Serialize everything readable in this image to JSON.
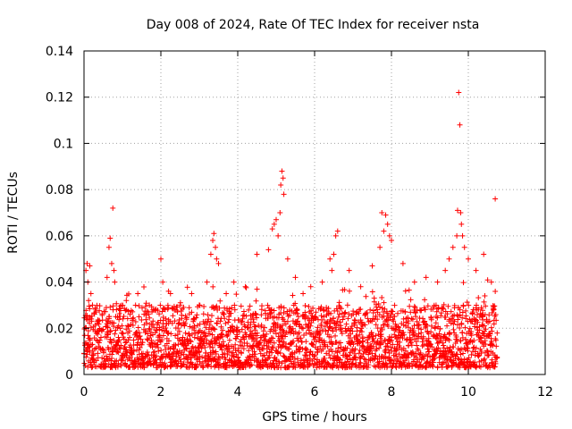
{
  "chart_data": {
    "type": "scatter",
    "title": "Day 008 of 2024, Rate Of TEC Index for receiver nsta",
    "xlabel": "GPS time / hours",
    "ylabel": "ROTI / TECUs",
    "xlim": [
      0,
      12
    ],
    "ylim": [
      0,
      0.14
    ],
    "xticks": [
      0,
      2,
      4,
      6,
      8,
      10,
      12
    ],
    "xtick_labels": [
      "0",
      "2",
      "4",
      "6",
      "8",
      "10",
      "12"
    ],
    "yticks": [
      0,
      0.02,
      0.04,
      0.06,
      0.08,
      0.1,
      0.12,
      0.14
    ],
    "ytick_labels": [
      "0",
      "0.02",
      "0.04",
      "0.06",
      "0.08",
      "0.1",
      "0.12",
      "0.14"
    ],
    "grid": true,
    "marker": "+",
    "color": "#ff0000",
    "series": [
      {
        "name": "ROTI",
        "x": [
          0.05,
          0.08,
          0.1,
          0.12,
          0.15,
          0.18,
          0.22,
          0.6,
          0.65,
          0.68,
          0.72,
          0.75,
          0.78,
          0.8,
          1.1,
          1.4,
          1.7,
          2.0,
          2.05,
          2.2,
          2.25,
          2.5,
          2.8,
          3.0,
          3.2,
          3.3,
          3.35,
          3.38,
          3.42,
          3.45,
          3.5,
          3.7,
          3.9,
          4.2,
          4.5,
          4.8,
          4.9,
          4.95,
          5.0,
          5.05,
          5.1,
          5.12,
          5.15,
          5.18,
          5.2,
          5.3,
          5.5,
          5.7,
          5.9,
          6.2,
          6.4,
          6.45,
          6.5,
          6.55,
          6.6,
          6.9,
          7.2,
          7.5,
          7.7,
          7.75,
          7.8,
          7.85,
          7.9,
          7.95,
          8.0,
          8.3,
          8.6,
          8.9,
          9.2,
          9.4,
          9.5,
          9.6,
          9.7,
          9.72,
          9.75,
          9.78,
          9.8,
          9.82,
          9.85,
          9.9,
          10.0,
          10.2,
          10.4,
          10.6,
          10.7
        ],
        "y": [
          0.045,
          0.048,
          0.04,
          0.032,
          0.047,
          0.035,
          0.03,
          0.042,
          0.055,
          0.059,
          0.048,
          0.072,
          0.045,
          0.04,
          0.032,
          0.035,
          0.03,
          0.05,
          0.04,
          0.036,
          0.035,
          0.03,
          0.035,
          0.03,
          0.04,
          0.052,
          0.058,
          0.061,
          0.055,
          0.05,
          0.048,
          0.035,
          0.04,
          0.038,
          0.052,
          0.054,
          0.063,
          0.065,
          0.067,
          0.06,
          0.07,
          0.082,
          0.088,
          0.085,
          0.078,
          0.05,
          0.042,
          0.035,
          0.038,
          0.04,
          0.05,
          0.045,
          0.052,
          0.06,
          0.062,
          0.045,
          0.038,
          0.047,
          0.055,
          0.07,
          0.062,
          0.069,
          0.065,
          0.06,
          0.058,
          0.048,
          0.04,
          0.042,
          0.04,
          0.045,
          0.05,
          0.055,
          0.06,
          0.071,
          0.122,
          0.108,
          0.07,
          0.065,
          0.06,
          0.055,
          0.05,
          0.045,
          0.052,
          0.04,
          0.076
        ]
      }
    ],
    "background_band": {
      "x_start": 0,
      "x_end": 10.75,
      "y_low": 0.003,
      "y_high": 0.03,
      "note": "dense cloud of points with ROTI mostly between 0.005 and 0.03 TECUs"
    }
  }
}
